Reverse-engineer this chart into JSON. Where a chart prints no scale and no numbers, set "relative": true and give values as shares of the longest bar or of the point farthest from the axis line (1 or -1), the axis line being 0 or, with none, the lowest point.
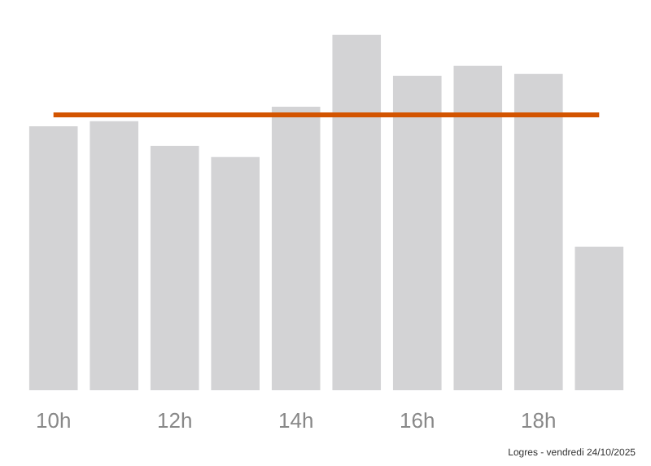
{
  "chart_data": {
    "type": "bar",
    "relative": true,
    "categories": [
      "10h",
      null,
      "12h",
      null,
      "14h",
      null,
      "16h",
      null,
      "18h",
      null
    ],
    "values": [
      0.743,
      0.757,
      0.688,
      0.656,
      0.798,
      1,
      0.885,
      0.913,
      0.89,
      0.404
    ],
    "color": "#d3d3d5",
    "ref_lines": [
      {
        "axis": "y",
        "value": 0.775,
        "color": "#d35400"
      }
    ],
    "grid": false,
    "annotations": [
      "Logres - vendredi 24/10/2025"
    ]
  }
}
